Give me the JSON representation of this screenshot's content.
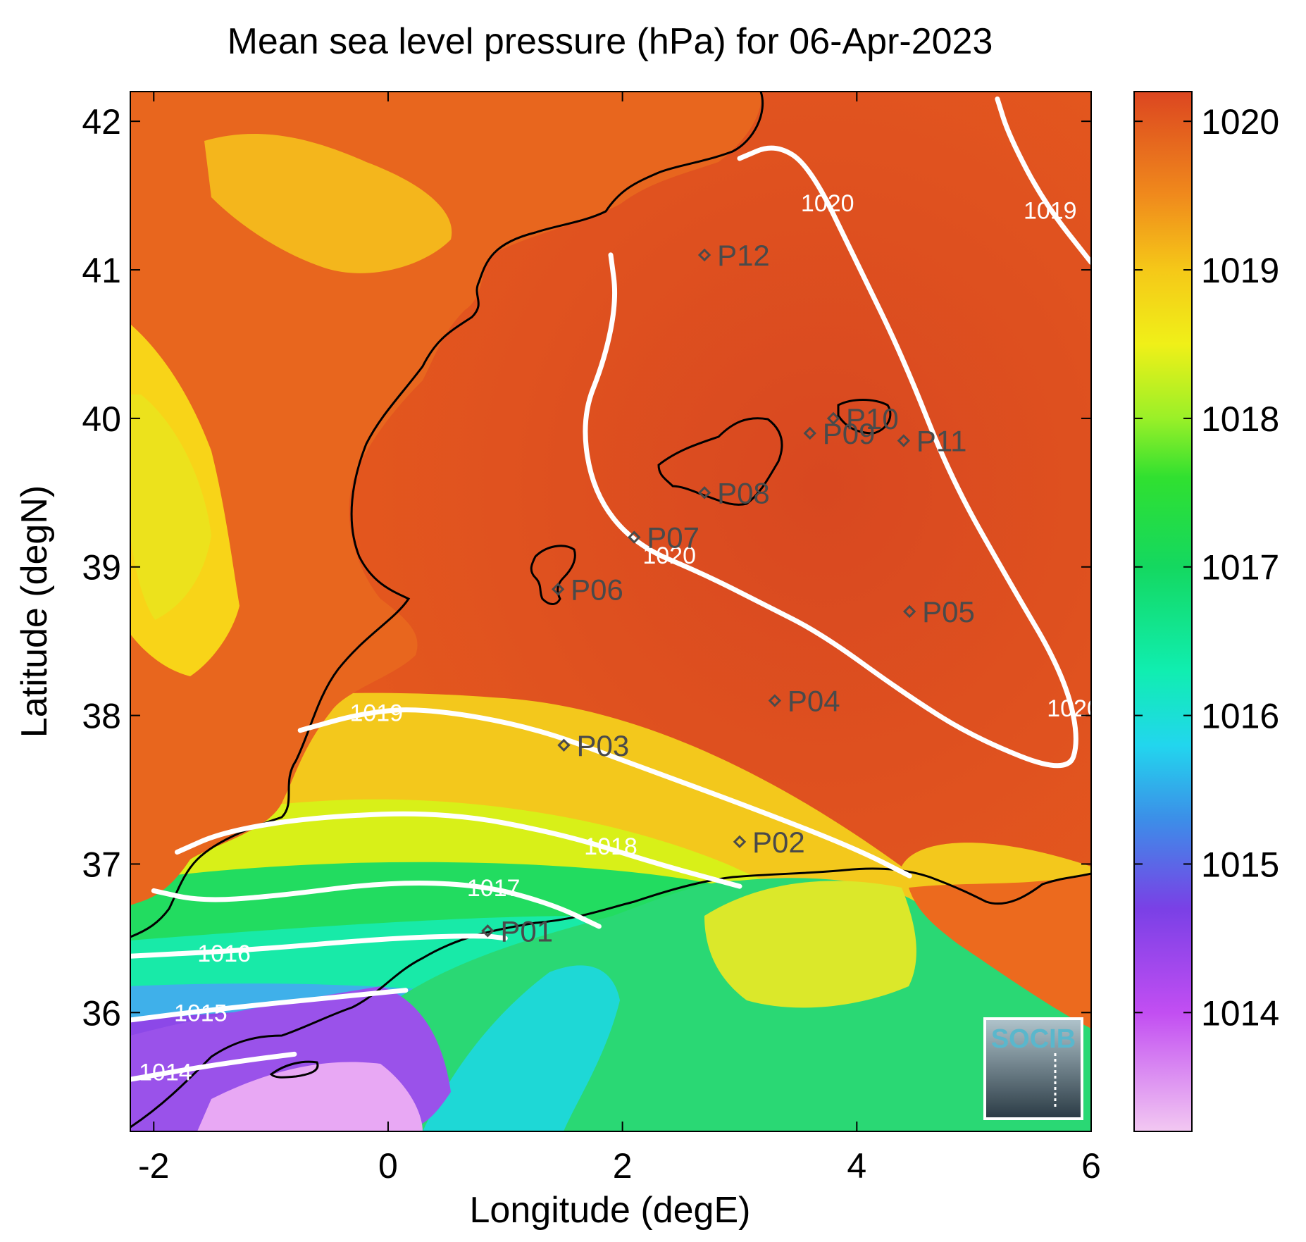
{
  "title": "Mean sea level pressure (hPa) for 06-Apr-2023",
  "xlabel": "Longitude (degE)",
  "ylabel": "Latitude (degN)",
  "logo_text": "SOCIB",
  "colors": {
    "land_high": "#e85a20",
    "land_light": "#f5b41a",
    "sea_high": "#e4541e",
    "contour": "#ffffff",
    "coastline": "#000000",
    "station": "#4a4a4a",
    "logo": "#5ab7cc"
  },
  "chart_data": {
    "type": "heatmap",
    "title": "Mean sea level pressure (hPa) for 06-Apr-2023",
    "xlabel": "Longitude (degE)",
    "ylabel": "Latitude (degN)",
    "xlim": [
      -2.2,
      6
    ],
    "ylim": [
      35.2,
      42.2
    ],
    "xticks": [
      -2,
      0,
      2,
      4,
      6
    ],
    "yticks": [
      36,
      37,
      38,
      39,
      40,
      41,
      42
    ],
    "colorbar": {
      "range": [
        1013.2,
        1020.2
      ],
      "ticks": [
        1014,
        1015,
        1016,
        1017,
        1018,
        1019,
        1020
      ],
      "stops": [
        {
          "value": 1013.2,
          "color": "#f2c8f2"
        },
        {
          "value": 1014.0,
          "color": "#c24ef2"
        },
        {
          "value": 1014.7,
          "color": "#7a40e6"
        },
        {
          "value": 1015.3,
          "color": "#3c8ee8"
        },
        {
          "value": 1015.8,
          "color": "#22d6ee"
        },
        {
          "value": 1016.3,
          "color": "#10eeb0"
        },
        {
          "value": 1017.0,
          "color": "#14d860"
        },
        {
          "value": 1017.6,
          "color": "#30e030"
        },
        {
          "value": 1018.0,
          "color": "#9af028"
        },
        {
          "value": 1018.5,
          "color": "#f0f018"
        },
        {
          "value": 1019.0,
          "color": "#f5c818"
        },
        {
          "value": 1019.5,
          "color": "#f08a1c"
        },
        {
          "value": 1020.2,
          "color": "#dc4620"
        }
      ]
    },
    "contours": [
      {
        "level": "1014",
        "points": [
          [
            -2.2,
            35.55
          ],
          [
            -1.7,
            35.62
          ],
          [
            -1.2,
            35.68
          ],
          [
            -0.8,
            35.72
          ]
        ],
        "label_at": [
          -1.9,
          35.6
        ]
      },
      {
        "level": "1015",
        "points": [
          [
            -2.2,
            35.95
          ],
          [
            -1.5,
            36.02
          ],
          [
            -0.5,
            36.1
          ],
          [
            0.15,
            36.15
          ]
        ],
        "label_at": [
          -1.6,
          36.0
        ]
      },
      {
        "level": "1016",
        "points": [
          [
            -2.2,
            36.38
          ],
          [
            -1.2,
            36.42
          ],
          [
            0,
            36.5
          ],
          [
            0.8,
            36.52
          ],
          [
            1.0,
            36.5
          ]
        ],
        "label_at": [
          -1.4,
          36.4
        ]
      },
      {
        "level": "1017",
        "points": [
          [
            -2.0,
            36.82
          ],
          [
            -1.6,
            36.75
          ],
          [
            -1.0,
            36.78
          ],
          [
            0,
            36.88
          ],
          [
            0.8,
            36.86
          ],
          [
            1.4,
            36.73
          ],
          [
            1.8,
            36.58
          ]
        ],
        "label_at": [
          0.9,
          36.84
        ]
      },
      {
        "level": "1018",
        "points": [
          [
            -1.8,
            37.08
          ],
          [
            -1.4,
            37.22
          ],
          [
            -0.6,
            37.32
          ],
          [
            0.5,
            37.35
          ],
          [
            1.5,
            37.2
          ],
          [
            2.3,
            37.0
          ],
          [
            3.0,
            36.85
          ]
        ],
        "label_at": [
          1.9,
          37.12
        ]
      },
      {
        "level": "1019",
        "points": [
          [
            -0.75,
            37.9
          ],
          [
            -0.2,
            38.02
          ],
          [
            0.3,
            38.05
          ],
          [
            1.2,
            37.93
          ],
          [
            2.0,
            37.7
          ],
          [
            3.2,
            37.35
          ],
          [
            4.0,
            37.1
          ],
          [
            4.45,
            36.92
          ]
        ],
        "label_at": [
          -0.1,
          38.02
        ]
      },
      {
        "level": "1019",
        "points": [
          [
            5.2,
            42.15
          ],
          [
            5.3,
            41.9
          ],
          [
            5.6,
            41.45
          ],
          [
            6.0,
            41.05
          ]
        ],
        "label_at": [
          5.65,
          41.4
        ]
      },
      {
        "level": "1020",
        "points": [
          [
            1.9,
            41.1
          ],
          [
            1.95,
            40.8
          ],
          [
            1.85,
            40.4
          ],
          [
            1.65,
            40.0
          ],
          [
            1.75,
            39.5
          ],
          [
            2.1,
            39.15
          ],
          [
            2.7,
            38.95
          ],
          [
            3.2,
            38.75
          ],
          [
            3.7,
            38.55
          ],
          [
            4.4,
            38.15
          ],
          [
            5.0,
            37.85
          ],
          [
            5.8,
            37.6
          ],
          [
            5.9,
            37.85
          ],
          [
            5.75,
            38.3
          ],
          [
            5.3,
            38.9
          ],
          [
            4.8,
            39.6
          ],
          [
            4.4,
            40.4
          ],
          [
            4.0,
            41.05
          ],
          [
            3.6,
            41.7
          ],
          [
            3.3,
            41.85
          ],
          [
            3.0,
            41.75
          ]
        ],
        "label_at": [
          2.4,
          39.08
        ]
      }
    ],
    "contour_labels_extra": [
      {
        "level": "1020",
        "at": [
          3.75,
          41.45
        ]
      },
      {
        "level": "1020",
        "at": [
          5.85,
          38.05
        ]
      }
    ],
    "stations": [
      {
        "name": "P01",
        "lon": 0.85,
        "lat": 36.55
      },
      {
        "name": "P02",
        "lon": 3.0,
        "lat": 37.15
      },
      {
        "name": "P03",
        "lon": 1.5,
        "lat": 37.8
      },
      {
        "name": "P04",
        "lon": 3.3,
        "lat": 38.1
      },
      {
        "name": "P05",
        "lon": 4.45,
        "lat": 38.7
      },
      {
        "name": "P06",
        "lon": 1.45,
        "lat": 38.85
      },
      {
        "name": "P07",
        "lon": 2.1,
        "lat": 39.2
      },
      {
        "name": "P08",
        "lon": 2.7,
        "lat": 39.5
      },
      {
        "name": "P09",
        "lon": 3.6,
        "lat": 39.9
      },
      {
        "name": "P10",
        "lon": 3.8,
        "lat": 40.0
      },
      {
        "name": "P11",
        "lon": 4.4,
        "lat": 39.85
      },
      {
        "name": "P12",
        "lon": 2.7,
        "lat": 41.1
      }
    ]
  }
}
